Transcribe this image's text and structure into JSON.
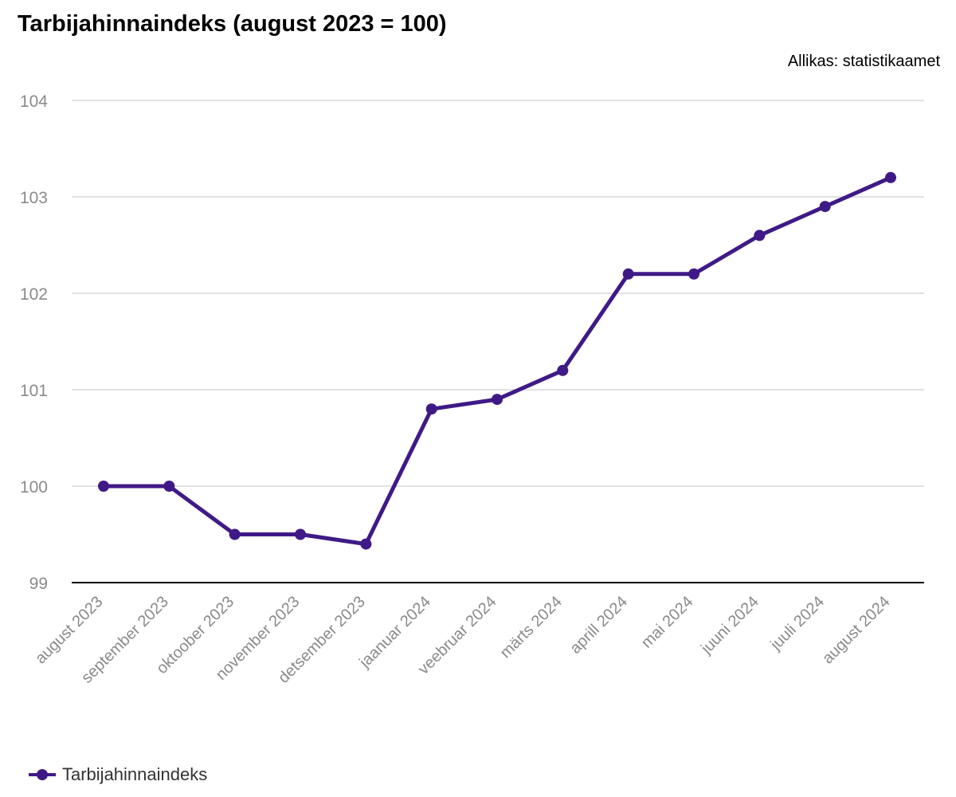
{
  "title": "Tarbijahinnaindeks (august 2023 = 100)",
  "source": "Allikas: statistikaamet",
  "legend": {
    "label": "Tarbijahinnaindeks"
  },
  "colors": {
    "series": "#3f1a87",
    "grid": "#d9d9d9",
    "axis": "#000000",
    "tick": "#8a8a8a"
  },
  "chart_data": {
    "type": "line",
    "title": "Tarbijahinnaindeks (august 2023 = 100)",
    "categories": [
      "august 2023",
      "september 2023",
      "oktoober 2023",
      "november 2023",
      "detsember 2023",
      "jaanuar 2024",
      "veebruar 2024",
      "märts 2024",
      "aprill 2024",
      "mai 2024",
      "juuni 2024",
      "juuli 2024",
      "august 2024"
    ],
    "series": [
      {
        "name": "Tarbijahinnaindeks",
        "values": [
          100,
          100,
          99.5,
          99.5,
          99.4,
          100.8,
          100.9,
          101.2,
          102.2,
          102.2,
          102.6,
          102.9,
          103.2
        ]
      }
    ],
    "yticks": [
      99,
      100,
      101,
      102,
      103,
      104
    ],
    "ylim": [
      99,
      104
    ],
    "grid": true,
    "legend_position": "bottom-left",
    "xlabel": "",
    "ylabel": ""
  }
}
